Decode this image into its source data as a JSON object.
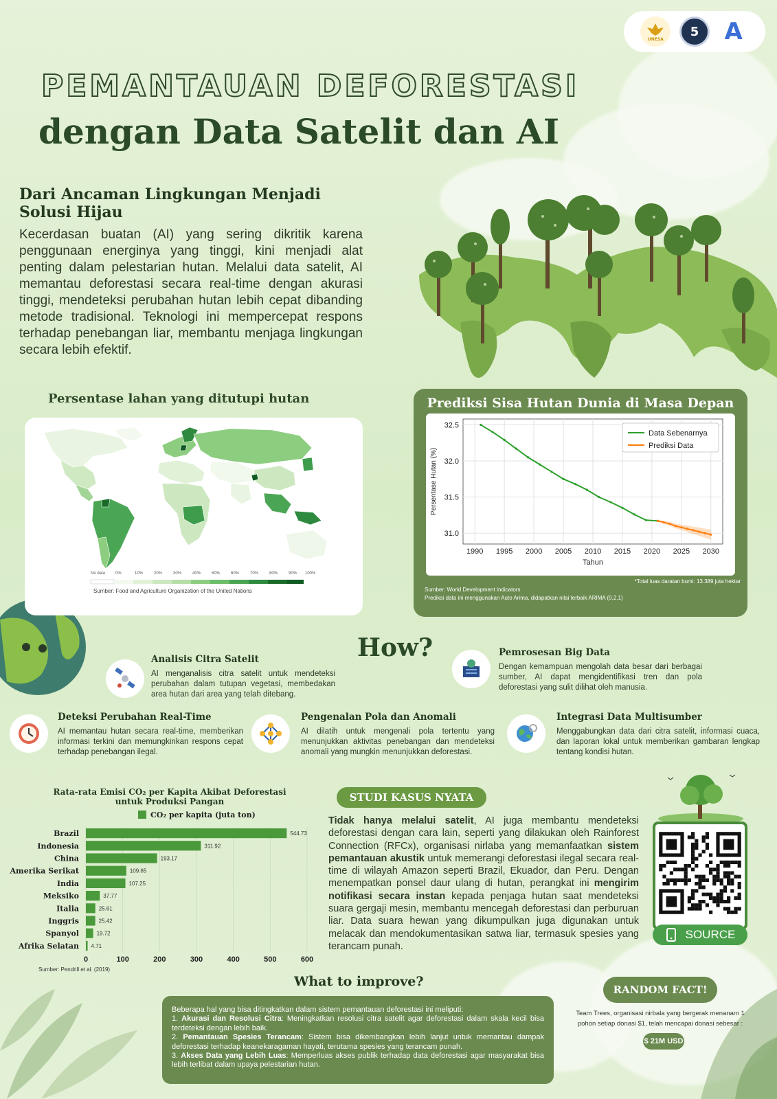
{
  "logos": {
    "unesa": "UNESA",
    "badge": "5",
    "letter": "A"
  },
  "title": {
    "line1": "PEMANTAUAN DEFORESTASI",
    "line2": "dengan Data Satelit dan AI"
  },
  "intro": {
    "heading": "Dari Ancaman Lingkungan Menjadi Solusi Hijau",
    "body": "Kecerdasan buatan (AI) yang sering dikritik karena penggunaan energinya yang tinggi, kini menjadi alat penting dalam pelestarian hutan. Melalui data satelit, AI memantau deforestasi secara real-time dengan akurasi tinggi, mendeteksi perubahan hutan lebih cepat dibanding metode tradisional. Teknologi ini mempercepat respons terhadap penebangan liar, membantu menjaga lingkungan secara lebih efektif."
  },
  "map": {
    "title": "Persentase lahan yang ditutupi hutan",
    "legend": [
      "No data",
      "0%",
      "10%",
      "20%",
      "30%",
      "40%",
      "50%",
      "60%",
      "70%",
      "80%",
      "90%",
      "100%"
    ],
    "source": "Sumber: Food and Agriculture Organization of the United Nations"
  },
  "prediction": {
    "title": "Prediksi Sisa Hutan Dunia di Masa Depan",
    "note_area": "*Total luas daratan bumi: 13.389 juta hektar",
    "note_source": "Sumber: World Development Indicators",
    "note_model": "Prediksi data ini menggunakan Auto Arima, didapatkan nilai terbaik ARIMA (0,2,1)"
  },
  "how": {
    "label": "How?"
  },
  "features": {
    "citra": {
      "title": "Analisis Citra Satelit",
      "text": "AI menganalisis citra satelit untuk mendeteksi perubahan dalam tutupan vegetasi, membedakan area hutan dari area yang telah ditebang."
    },
    "bigdata": {
      "title": "Pemrosesan Big Data",
      "text": "Dengan kemampuan mengolah data besar dari berbagai sumber, AI dapat mengidentifikasi tren dan pola deforestasi yang sulit dilihat oleh manusia."
    },
    "realtime": {
      "title": "Deteksi Perubahan Real-Time",
      "text": "AI memantau hutan secara real-time, memberikan informasi terkini dan memungkinkan respons cepat terhadap penebangan ilegal."
    },
    "pola": {
      "title": "Pengenalan Pola dan Anomali",
      "text": "AI dilatih untuk mengenali pola tertentu yang menunjukkan aktivitas penebangan dan mendeteksi anomali yang mungkin menunjukkan deforestasi."
    },
    "integrasi": {
      "title": "Integrasi Data Multisumber",
      "text": "Menggabungkan data dari citra satelit, informasi cuaca, dan laporan lokal untuk memberikan gambaran lengkap tentang kondisi hutan."
    }
  },
  "case": {
    "label": "STUDI KASUS NYATA",
    "p1_bold": "Tidak hanya melalui satelit",
    "p1": ", AI juga membantu mendeteksi deforestasi dengan cara lain, seperti yang dilakukan oleh Rainforest Connection (RFCx), organisasi nirlaba yang memanfaatkan ",
    "p2_bold": "sistem pemantauan akustik",
    "p2": " untuk memerangi deforestasi ilegal secara real-time di wilayah Amazon seperti Brazil, Ekuador, dan Peru. Dengan menempatkan ponsel daur ulang di hutan, perangkat ini ",
    "p3_bold": "mengirim notifikasi secara instan",
    "p3": " kepada penjaga hutan saat mendeteksi suara gergaji mesin, membantu mencegah deforestasi dan perburuan liar. Data suara hewan yang dikumpulkan juga digunakan untuk melacak dan mendokumentasikan satwa liar, termasuk spesies yang terancam punah."
  },
  "source_button": {
    "label": "SOURCE"
  },
  "improve": {
    "title": "What to improve?",
    "intro": "Beberapa hal yang bisa ditingkatkan dalam sistem pemantauan deforestasi ini meliputi:",
    "items": [
      {
        "num": "1.",
        "bold": "Akurasi dan Resolusi Citra",
        "text": ": Meningkatkan resolusi citra satelit agar deforestasi dalam skala kecil bisa terdeteksi dengan lebih baik."
      },
      {
        "num": "2.",
        "bold": "Pemantauan Spesies Terancam",
        "text": ": Sistem bisa dikembangkan lebih lanjut untuk memantau dampak deforestasi terhadap keanekaragaman hayati, terutama spesies yang terancam punah."
      },
      {
        "num": "3.",
        "bold": "Akses Data yang Lebih Luas",
        "text": ": Memperluas akses publik terhadap data deforestasi agar masyarakat bisa lebih terlibat dalam upaya pelestarian hutan."
      }
    ]
  },
  "fact": {
    "label": "RANDOM FACT!",
    "text": "Team Trees, organisasi nirbala yang bergerak menanam 1 pohon setiap donasi $1, telah mencapai donasi sebesar :",
    "value": "$ 21M USD"
  },
  "chart_data": [
    {
      "type": "line",
      "xlabel": "Tahun",
      "ylabel": "Persentase Hutan (%)",
      "xlim": [
        1988,
        2032
      ],
      "ylim": [
        30.85,
        32.58
      ],
      "xticks": [
        1990,
        1995,
        2000,
        2005,
        2010,
        2015,
        2020,
        2025,
        2030
      ],
      "yticks": [
        31.0,
        31.5,
        32.0,
        32.5
      ],
      "grid": true,
      "legend_position": "top-right",
      "colors": {
        "actual": "#2ca02c",
        "forecast": "#ff7f0e"
      },
      "series": [
        {
          "name": "Data Sebenarnya",
          "x": [
            1991,
            1993,
            1995,
            1997,
            1999,
            2001,
            2003,
            2005,
            2007,
            2009,
            2011,
            2013,
            2015,
            2017,
            2019,
            2021
          ],
          "y": [
            32.5,
            32.4,
            32.29,
            32.17,
            32.05,
            31.95,
            31.85,
            31.75,
            31.68,
            31.6,
            31.5,
            31.43,
            31.35,
            31.26,
            31.18,
            31.17
          ]
        },
        {
          "name": "Prediksi Data",
          "x": [
            2021,
            2022,
            2023,
            2024,
            2025,
            2026,
            2027,
            2028,
            2029,
            2030
          ],
          "y": [
            31.17,
            31.15,
            31.13,
            31.1,
            31.08,
            31.06,
            31.04,
            31.02,
            31.0,
            30.98
          ]
        }
      ]
    },
    {
      "type": "bar",
      "title": "Rata-rata Emisi CO₂ per Kapita Akibat Deforestasi untuk Produksi Pangan",
      "legend": "CO₂ per kapita (juta ton)",
      "source": "Sumber: Pendrill et al. (2019)",
      "orientation": "horizontal",
      "categories": [
        "Brazil",
        "Indonesia",
        "China",
        "Amerika Serikat",
        "India",
        "Meksiko",
        "Italia",
        "Inggris",
        "Spanyol",
        "Afrika Selatan"
      ],
      "values": [
        544.73,
        311.92,
        193.17,
        109.65,
        107.25,
        37.77,
        25.61,
        25.42,
        19.72,
        4.71
      ],
      "xlim": [
        0,
        600
      ],
      "xticks": [
        0,
        100,
        200,
        300,
        400,
        500,
        600
      ],
      "color": "#4a9a3c"
    }
  ]
}
